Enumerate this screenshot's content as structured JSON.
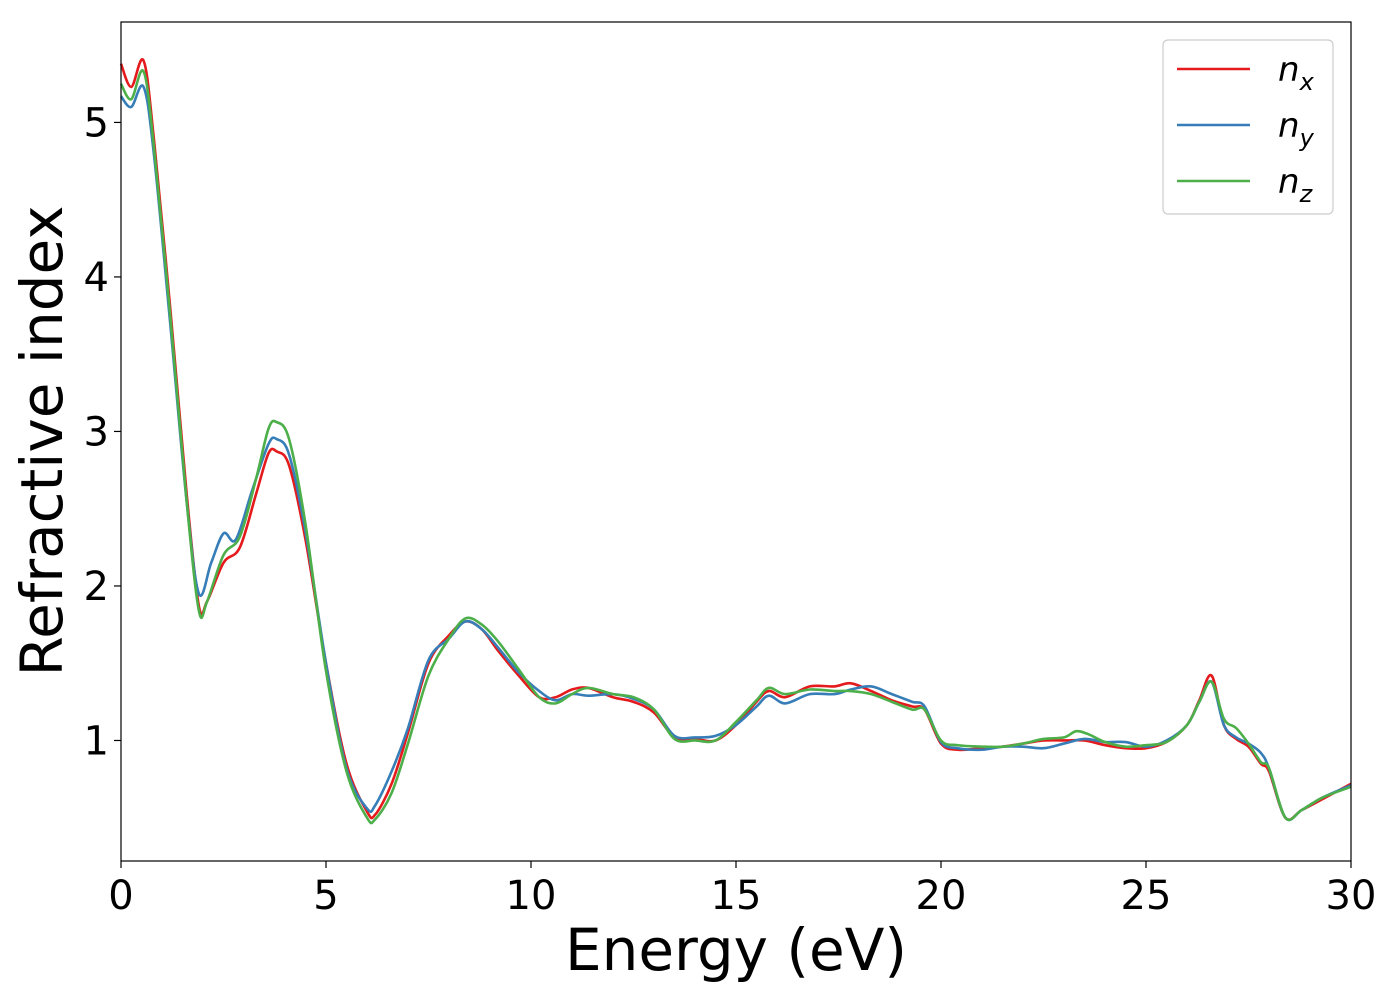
{
  "chart_data": {
    "type": "line",
    "xlabel": "Energy (eV)",
    "ylabel": "Refractive index",
    "xlim": [
      0,
      30
    ],
    "ylim": [
      0.22,
      5.65
    ],
    "xticks": [
      0,
      5,
      10,
      15,
      20,
      25,
      30
    ],
    "xtick_labels": [
      "0",
      "5",
      "10",
      "15",
      "20",
      "25",
      "30"
    ],
    "yticks": [
      1,
      2,
      3,
      4,
      5
    ],
    "ytick_labels": [
      "1",
      "2",
      "3",
      "4",
      "5"
    ],
    "grid": false,
    "legend_position": "top-right",
    "series": [
      {
        "name": "n",
        "subscript": "x",
        "color": "#e41a1c",
        "x": [
          0,
          0.25,
          0.55,
          0.8,
          1.2,
          1.6,
          1.9,
          2.1,
          2.5,
          2.9,
          3.3,
          3.6,
          3.8,
          4.1,
          4.5,
          5.0,
          5.5,
          6.0,
          6.2,
          6.6,
          7.0,
          7.5,
          8.0,
          8.4,
          8.8,
          9.2,
          9.7,
          10.2,
          10.6,
          11.0,
          11.4,
          12.0,
          12.5,
          13.0,
          13.5,
          14.0,
          14.5,
          15.0,
          15.5,
          15.8,
          16.2,
          16.8,
          17.4,
          17.8,
          18.3,
          18.8,
          19.3,
          19.6,
          20.0,
          20.4,
          21.0,
          21.5,
          22.0,
          22.5,
          23.0,
          23.5,
          24.0,
          24.5,
          25.0,
          25.5,
          26.0,
          26.3,
          26.6,
          26.9,
          27.2,
          27.5,
          27.8,
          28.0,
          28.4,
          28.8,
          29.3,
          30.0
        ],
        "y": [
          5.38,
          5.23,
          5.4,
          4.9,
          3.8,
          2.6,
          1.87,
          1.9,
          2.15,
          2.25,
          2.6,
          2.86,
          2.87,
          2.78,
          2.3,
          1.5,
          0.85,
          0.54,
          0.52,
          0.72,
          1.05,
          1.5,
          1.68,
          1.77,
          1.72,
          1.58,
          1.42,
          1.28,
          1.28,
          1.33,
          1.34,
          1.28,
          1.25,
          1.18,
          1.02,
          1.01,
          1.0,
          1.1,
          1.25,
          1.32,
          1.28,
          1.35,
          1.35,
          1.37,
          1.32,
          1.26,
          1.22,
          1.2,
          0.98,
          0.94,
          0.95,
          0.96,
          0.98,
          1.0,
          1.0,
          1.0,
          0.97,
          0.95,
          0.95,
          0.99,
          1.1,
          1.26,
          1.42,
          1.1,
          1.01,
          0.96,
          0.85,
          0.8,
          0.5,
          0.55,
          0.62,
          0.72
        ]
      },
      {
        "name": "n",
        "subscript": "y",
        "color": "#377eb8",
        "x": [
          0,
          0.25,
          0.55,
          0.8,
          1.2,
          1.6,
          1.9,
          2.2,
          2.5,
          2.8,
          3.2,
          3.6,
          3.8,
          4.1,
          4.5,
          5.0,
          5.5,
          6.0,
          6.2,
          6.6,
          7.0,
          7.5,
          8.0,
          8.4,
          8.8,
          9.2,
          9.7,
          10.2,
          10.6,
          11.0,
          11.4,
          12.0,
          12.5,
          13.0,
          13.5,
          14.0,
          14.5,
          15.0,
          15.5,
          15.8,
          16.2,
          16.8,
          17.4,
          17.8,
          18.3,
          18.8,
          19.3,
          19.6,
          20.0,
          20.4,
          21.0,
          21.5,
          22.0,
          22.5,
          23.0,
          23.5,
          24.0,
          24.5,
          25.0,
          25.5,
          26.0,
          26.3,
          26.6,
          26.9,
          27.2,
          27.5,
          27.8,
          28.0,
          28.4,
          28.8,
          29.3,
          30.0
        ],
        "y": [
          5.17,
          5.1,
          5.23,
          4.8,
          3.7,
          2.55,
          1.95,
          2.15,
          2.34,
          2.3,
          2.62,
          2.92,
          2.95,
          2.85,
          2.35,
          1.5,
          0.82,
          0.56,
          0.58,
          0.8,
          1.08,
          1.52,
          1.66,
          1.77,
          1.72,
          1.6,
          1.44,
          1.32,
          1.26,
          1.3,
          1.29,
          1.3,
          1.27,
          1.2,
          1.03,
          1.02,
          1.03,
          1.1,
          1.22,
          1.29,
          1.24,
          1.3,
          1.3,
          1.33,
          1.35,
          1.3,
          1.25,
          1.22,
          0.99,
          0.95,
          0.94,
          0.96,
          0.96,
          0.95,
          0.98,
          1.01,
          0.99,
          0.99,
          0.96,
          1.0,
          1.1,
          1.25,
          1.38,
          1.1,
          1.02,
          0.98,
          0.92,
          0.82,
          0.5,
          0.55,
          0.63,
          0.71
        ]
      },
      {
        "name": "n",
        "subscript": "z",
        "color": "#4daf4a",
        "x": [
          0,
          0.25,
          0.55,
          0.8,
          1.2,
          1.6,
          1.9,
          2.1,
          2.5,
          2.9,
          3.3,
          3.6,
          3.8,
          4.1,
          4.5,
          5.0,
          5.5,
          6.0,
          6.2,
          6.6,
          7.0,
          7.5,
          8.0,
          8.4,
          8.8,
          9.2,
          9.7,
          10.2,
          10.6,
          11.0,
          11.4,
          12.0,
          12.5,
          13.0,
          13.5,
          14.0,
          14.5,
          15.0,
          15.5,
          15.8,
          16.2,
          16.8,
          17.4,
          17.8,
          18.3,
          18.8,
          19.3,
          19.6,
          20.0,
          20.4,
          21.0,
          21.5,
          22.0,
          22.5,
          23.0,
          23.3,
          23.6,
          24.0,
          24.5,
          25.0,
          25.5,
          26.0,
          26.3,
          26.6,
          26.9,
          27.2,
          27.5,
          27.8,
          28.0,
          28.4,
          28.8,
          29.3,
          30.0
        ],
        "y": [
          5.25,
          5.15,
          5.33,
          4.85,
          3.75,
          2.55,
          1.84,
          1.9,
          2.2,
          2.32,
          2.7,
          3.02,
          3.06,
          2.95,
          2.4,
          1.45,
          0.8,
          0.5,
          0.49,
          0.66,
          0.98,
          1.42,
          1.66,
          1.79,
          1.75,
          1.64,
          1.46,
          1.28,
          1.24,
          1.3,
          1.34,
          1.3,
          1.28,
          1.2,
          1.01,
          1.0,
          1.0,
          1.12,
          1.26,
          1.34,
          1.3,
          1.33,
          1.32,
          1.32,
          1.3,
          1.25,
          1.2,
          1.2,
          1.0,
          0.97,
          0.96,
          0.96,
          0.98,
          1.01,
          1.02,
          1.06,
          1.04,
          0.99,
          0.96,
          0.97,
          0.99,
          1.1,
          1.25,
          1.38,
          1.14,
          1.08,
          0.98,
          0.86,
          0.82,
          0.5,
          0.55,
          0.63,
          0.7
        ]
      }
    ]
  }
}
